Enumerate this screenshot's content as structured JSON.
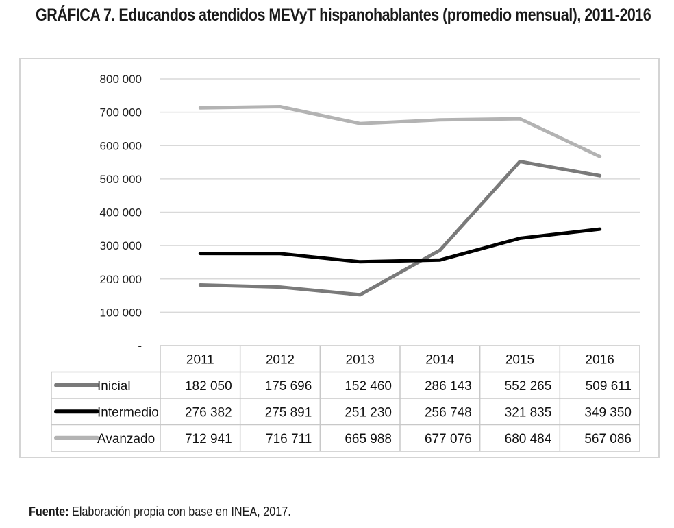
{
  "figure": {
    "label": "GRÁFICA 7.",
    "title": "Educandos atendidos MEVyT hispanohablantes (promedio mensual), 2011-2016",
    "source_label": "Fuente:",
    "source_text": "Elaboración propia con base en INEA, 2017."
  },
  "chart_data": {
    "type": "line",
    "title": "Educandos atendidos MEVyT hispanohablantes (promedio mensual), 2011-2016",
    "xlabel": "",
    "ylabel": "",
    "categories": [
      "2011",
      "2012",
      "2013",
      "2014",
      "2015",
      "2016"
    ],
    "ylim": [
      0,
      800000
    ],
    "y_ticks": [
      0,
      100000,
      200000,
      300000,
      400000,
      500000,
      600000,
      700000,
      800000
    ],
    "y_tick_labels": [
      "-",
      "100 000",
      "200 000",
      "300 000",
      "400 000",
      "500 000",
      "600 000",
      "700 000",
      "800 000"
    ],
    "grid": true,
    "legend_placement": "data-table-left",
    "series": [
      {
        "name": "Inicial",
        "color": "#7a7a7a",
        "values": [
          182050,
          175696,
          152460,
          286143,
          552265,
          509611
        ],
        "labels": [
          "182 050",
          "175 696",
          "152 460",
          "286 143",
          "552 265",
          "509 611"
        ]
      },
      {
        "name": "Intermedio",
        "color": "#000000",
        "values": [
          276382,
          275891,
          251230,
          256748,
          321835,
          349350
        ],
        "labels": [
          "276 382",
          "275 891",
          "251 230",
          "256 748",
          "321 835",
          "349 350"
        ]
      },
      {
        "name": "Avanzado",
        "color": "#b3b3b3",
        "values": [
          712941,
          716711,
          665988,
          677076,
          680484,
          567086
        ],
        "labels": [
          "712 941",
          "716 711",
          "665 988",
          "677 076",
          "680 484",
          "567 086"
        ]
      }
    ]
  }
}
